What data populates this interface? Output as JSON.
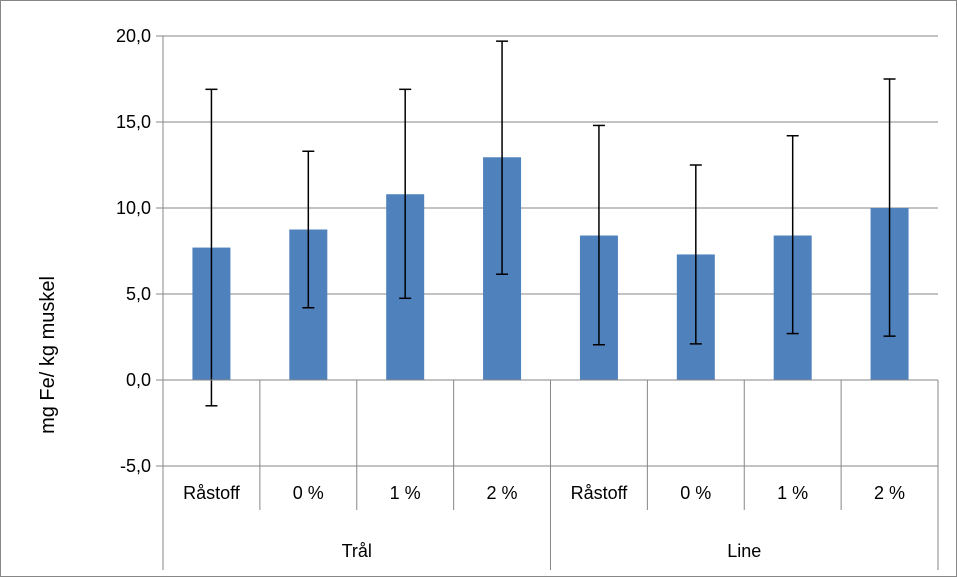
{
  "chart_data": {
    "type": "bar",
    "title": "",
    "xlabel": "",
    "ylabel": "mg Fe/ kg muskel",
    "ylim": [
      -5,
      20
    ],
    "yticks": [
      -5,
      0,
      5,
      10,
      15,
      20
    ],
    "ytick_labels": [
      "-5,0",
      "0,0",
      "5,0",
      "10,0",
      "15,0",
      "20,0"
    ],
    "grid": true,
    "groups": [
      {
        "label": "Trål",
        "categories": [
          "Råstoff",
          "0 %",
          "1 %",
          "2 %"
        ]
      },
      {
        "label": "Line",
        "categories": [
          "Råstoff",
          "0 %",
          "1 %",
          "2 %"
        ]
      }
    ],
    "categories": [
      "Råstoff",
      "0 %",
      "1 %",
      "2 %",
      "Råstoff",
      "0 %",
      "1 %",
      "2 %"
    ],
    "values": [
      7.7,
      8.75,
      10.8,
      12.95,
      8.4,
      7.3,
      8.4,
      10.0
    ],
    "error_low": [
      -1.5,
      4.2,
      4.75,
      6.15,
      2.05,
      2.1,
      2.7,
      2.55
    ],
    "error_high": [
      16.9,
      13.3,
      16.9,
      19.7,
      14.8,
      12.5,
      14.2,
      17.5
    ],
    "colors": {
      "bar": "#4f81bd",
      "grid": "#878787",
      "axis": "#878787",
      "error": "#000000",
      "frame": "#878787"
    }
  }
}
